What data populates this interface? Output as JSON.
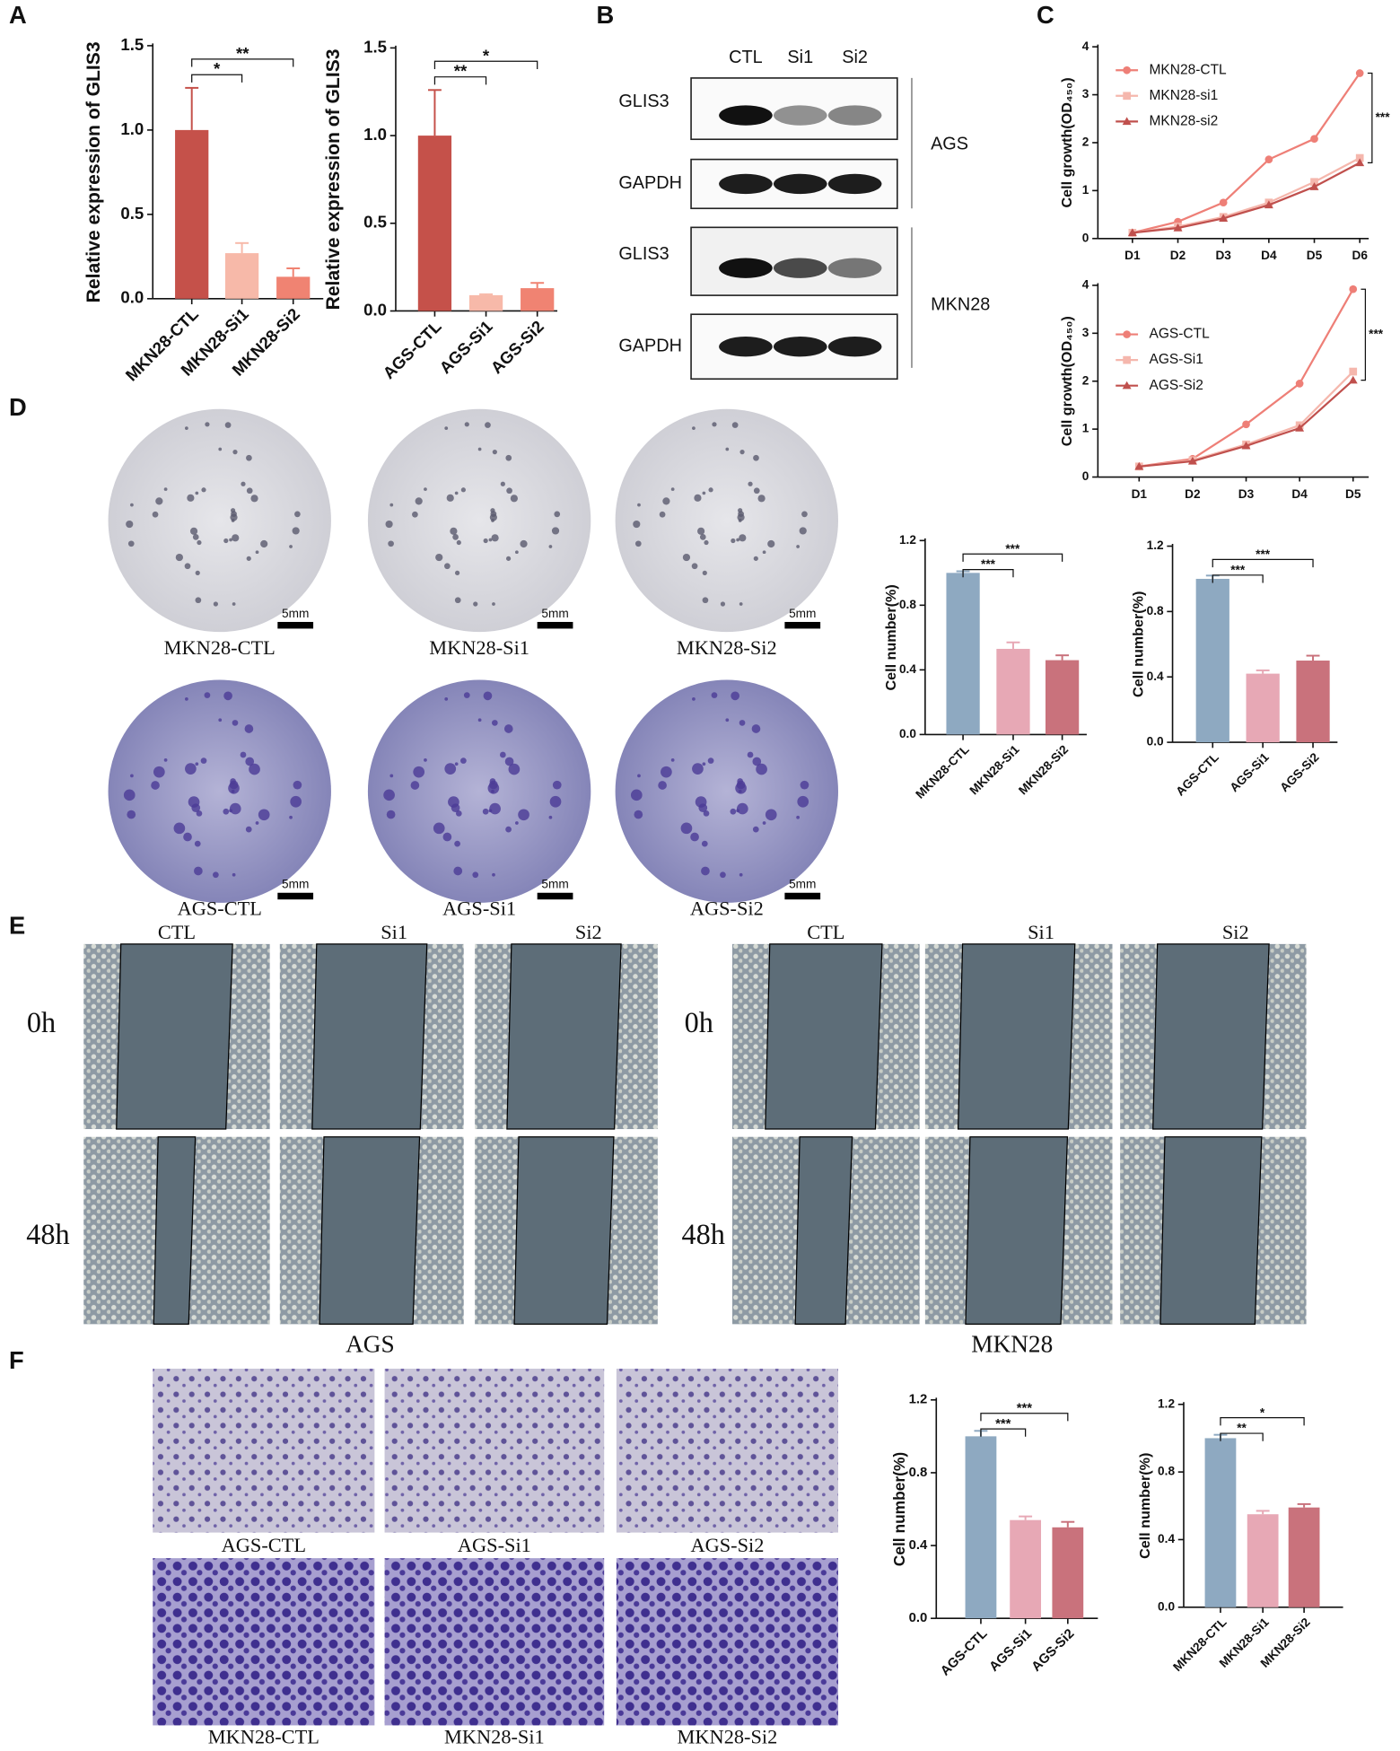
{
  "panel_letters": [
    "A",
    "B",
    "C",
    "D",
    "E",
    "F"
  ],
  "chart_data": [
    {
      "type": "bar",
      "y_label": "Relative expression of GLIS3",
      "categories": [
        "MKN28-CTL",
        "MKN28-Si1",
        "MKN28-Si2"
      ],
      "values": [
        1.0,
        0.27,
        0.13
      ],
      "errors": [
        0.25,
        0.06,
        0.05
      ],
      "colors": [
        "#c5514a",
        "#f7b9a9",
        "#f08372"
      ],
      "ylim": [
        0,
        1.5
      ],
      "yticks": [
        {
          "value": 0,
          "label": "0.0"
        },
        0.5,
        {
          "value": 1,
          "label": "1.0"
        },
        1.5
      ],
      "annotations": [
        "*",
        "**"
      ]
    },
    {
      "type": "bar",
      "y_label": "Relative expression of GLIS3",
      "categories": [
        "AGS-CTL",
        "AGS-Si1",
        "AGS-Si2"
      ],
      "values": [
        1.0,
        0.09,
        0.13
      ],
      "errors": [
        0.26,
        0.005,
        0.03
      ],
      "colors": [
        "#c5514a",
        "#f7b9a9",
        "#f08372"
      ],
      "ylim": [
        0,
        1.5
      ],
      "yticks": [
        {
          "value": 0,
          "label": "0.0"
        },
        0.5,
        {
          "value": 1,
          "label": "1.0"
        },
        1.5
      ],
      "annotations": [
        "**",
        "*"
      ]
    },
    {
      "type": "line",
      "y_label": "Cell growth(OD₄₅₀)",
      "categories": [
        "D1",
        "D2",
        "D3",
        "D4",
        "D5",
        "D6"
      ],
      "series": [
        {
          "name": "MKN28-CTL",
          "color": "#ee7f77",
          "values": [
            0.12,
            0.35,
            0.75,
            1.65,
            2.08,
            3.45
          ]
        },
        {
          "name": "MKN28-si1",
          "color": "#f5b7ad",
          "values": [
            0.12,
            0.25,
            0.45,
            0.75,
            1.18,
            1.68
          ]
        },
        {
          "name": "MKN28-si2",
          "color": "#c0504d",
          "values": [
            0.12,
            0.22,
            0.42,
            0.7,
            1.08,
            1.58
          ]
        }
      ],
      "ylim": [
        0,
        4
      ],
      "yticks": [
        0,
        1,
        2,
        3,
        4
      ],
      "annotations": [
        "***"
      ]
    },
    {
      "type": "line",
      "y_label": "Cell growth(OD₄₅₀)",
      "categories": [
        "D1",
        "D2",
        "D3",
        "D4",
        "D5"
      ],
      "series": [
        {
          "name": "AGS-CTL",
          "color": "#ee7f77",
          "values": [
            0.22,
            0.38,
            1.1,
            1.95,
            3.92
          ]
        },
        {
          "name": "AGS-Si1",
          "color": "#f5b7ad",
          "values": [
            0.22,
            0.35,
            0.68,
            1.08,
            2.2
          ]
        },
        {
          "name": "AGS-Si2",
          "color": "#c0504d",
          "values": [
            0.22,
            0.33,
            0.65,
            1.02,
            2.02
          ]
        }
      ],
      "ylim": [
        0,
        4
      ],
      "yticks": [
        0,
        1,
        2,
        3,
        4
      ],
      "annotations": [
        "***"
      ]
    },
    {
      "type": "bar",
      "y_label": "Cell number(%)",
      "categories": [
        "MKN28-CTL",
        "MKN28-Si1",
        "MKN28-Si2"
      ],
      "values": [
        1.0,
        0.53,
        0.46
      ],
      "errors": [
        0.01,
        0.04,
        0.03
      ],
      "colors": [
        "#8ea9c1",
        "#e7a8b5",
        "#c9727c"
      ],
      "ylim": [
        0,
        1.2
      ],
      "yticks": [
        {
          "value": 0,
          "label": "0.0"
        },
        0.4,
        0.8,
        1.2
      ],
      "annotations": [
        "***",
        "***"
      ]
    },
    {
      "type": "bar",
      "y_label": "Cell number(%)",
      "categories": [
        "AGS-CTL",
        "AGS-Si1",
        "AGS-Si2"
      ],
      "values": [
        1.0,
        0.42,
        0.5
      ],
      "errors": [
        0.02,
        0.02,
        0.03
      ],
      "colors": [
        "#8ea9c1",
        "#e7a8b5",
        "#c9727c"
      ],
      "ylim": [
        0,
        1.2
      ],
      "yticks": [
        {
          "value": 0,
          "label": "0.0"
        },
        0.4,
        0.8,
        1.2
      ],
      "annotations": [
        "***",
        "***"
      ]
    },
    {
      "type": "bar",
      "y_label": "Cell number(%)",
      "categories": [
        "AGS-CTL",
        "AGS-Si1",
        "AGS-Si2"
      ],
      "values": [
        1.0,
        0.54,
        0.5
      ],
      "errors": [
        0.03,
        0.02,
        0.03
      ],
      "colors": [
        "#8ea9c1",
        "#e7a8b5",
        "#c9727c"
      ],
      "ylim": [
        0,
        1.2
      ],
      "yticks": [
        {
          "value": 0,
          "label": "0.0"
        },
        0.4,
        0.8,
        1.2
      ],
      "annotations": [
        "***",
        "***"
      ]
    },
    {
      "type": "bar",
      "y_label": "Cell number(%)",
      "categories": [
        "MKN28-CTL",
        "MKN28-Si1",
        "MKN28-Si2"
      ],
      "values": [
        1.0,
        0.55,
        0.59
      ],
      "errors": [
        0.02,
        0.02,
        0.02
      ],
      "colors": [
        "#8ea9c1",
        "#e7a8b5",
        "#c9727c"
      ],
      "ylim": [
        0,
        1.2
      ],
      "yticks": [
        {
          "value": 0,
          "label": "0.0"
        },
        0.4,
        0.8,
        1.2
      ],
      "annotations": [
        "**",
        "*"
      ]
    }
  ],
  "western_blot": {
    "lanes": [
      "CTL",
      "Si1",
      "Si2"
    ],
    "rows": [
      "GLIS3",
      "GAPDH",
      "GLIS3",
      "GAPDH"
    ],
    "cell_lines": [
      "AGS",
      "MKN28"
    ]
  },
  "colony_images": {
    "captions": [
      "MKN28-CTL",
      "MKN28-Si1",
      "MKN28-Si2",
      "AGS-CTL",
      "AGS-Si1",
      "AGS-Si2"
    ],
    "scale_bar": "5mm"
  },
  "wound_healing": {
    "columns": [
      "CTL",
      "Si1",
      "Si2",
      "CTL",
      "Si1",
      "Si2"
    ],
    "times": [
      "0h",
      "48h",
      "0h",
      "48h"
    ],
    "cell_lines": [
      "AGS",
      "MKN28"
    ]
  },
  "transwell_images": {
    "captions": [
      "AGS-CTL",
      "AGS-Si1",
      "AGS-Si2",
      "MKN28-CTL",
      "MKN28-Si1",
      "MKN28-Si2"
    ]
  }
}
